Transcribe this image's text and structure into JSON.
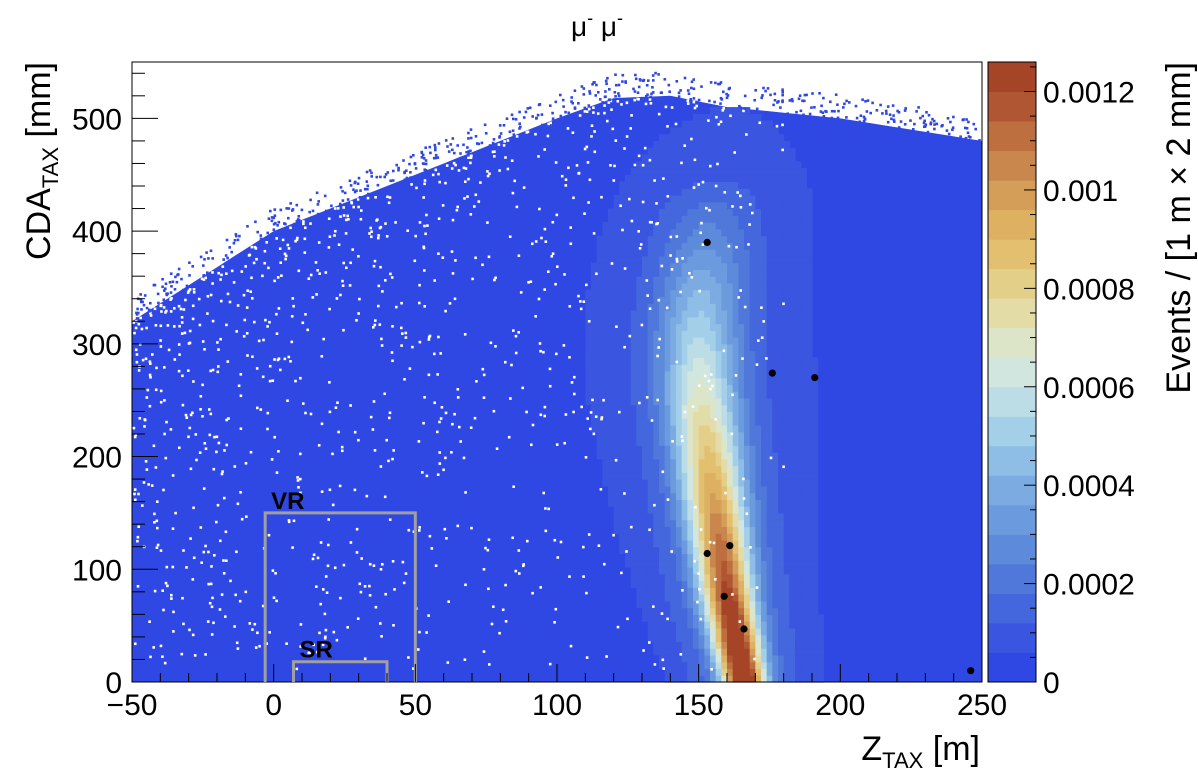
{
  "chart_data": {
    "type": "heatmap",
    "title_parts": [
      "μ",
      "-",
      " μ",
      "-"
    ],
    "xlabel": {
      "main": "Z",
      "sub": "TAX",
      "unit": " [m]"
    },
    "ylabel": {
      "main": "CDA",
      "sub": "TAX",
      "unit": " [mm]"
    },
    "zlabel": "Events / [1 m × 2 mm]",
    "xlim": [
      -50,
      250
    ],
    "ylim": [
      0,
      550
    ],
    "zlim": [
      0,
      0.00126
    ],
    "x_ticks": [
      -50,
      0,
      50,
      100,
      150,
      200,
      250
    ],
    "x_tick_labels": [
      "−50",
      "0",
      "50",
      "100",
      "150",
      "200",
      "250"
    ],
    "y_ticks": [
      0,
      100,
      200,
      300,
      400,
      500
    ],
    "y_tick_labels": [
      "0",
      "100",
      "200",
      "300",
      "400",
      "500"
    ],
    "z_ticks": [
      0,
      0.0002,
      0.0004,
      0.0006,
      0.0008,
      0.001,
      0.0012
    ],
    "z_tick_labels": [
      "0",
      "0.0002",
      "0.0004",
      "0.0006",
      "0.0008",
      "0.001",
      "0.0012"
    ],
    "palette": [
      "#2f47e3",
      "#3a55e0",
      "#4567dd",
      "#5078da",
      "#5d8adb",
      "#6c9ade",
      "#7cabe2",
      "#8ebde6",
      "#a4cfe8",
      "#bcdde6",
      "#d1e6df",
      "#dde5c8",
      "#e3dca7",
      "#e4cf88",
      "#e2c070",
      "#ddb062",
      "#d49d58",
      "#c9874d",
      "#bd6f3f",
      "#b05632",
      "#a54426"
    ],
    "density_model": {
      "background_value": 6e-06,
      "band_ridge_x": [
        [
          0,
          166
        ],
        [
          80,
          160
        ],
        [
          150,
          156
        ],
        [
          250,
          151
        ],
        [
          320,
          150
        ],
        [
          400,
          153
        ],
        [
          500,
          160
        ],
        [
          550,
          165
        ]
      ],
      "band_peak": 0.00126,
      "halo_peak": 0.00022,
      "empty_region_boundary": [
        [
          -50,
          320
        ],
        [
          0,
          400
        ],
        [
          50,
          450
        ],
        [
          100,
          500
        ],
        [
          120,
          518
        ],
        [
          140,
          520
        ],
        [
          160,
          510
        ],
        [
          200,
          500
        ],
        [
          250,
          480
        ]
      ]
    },
    "regions": [
      {
        "name": "VR",
        "x_range": [
          -3,
          50
        ],
        "y_range": [
          0,
          150
        ],
        "color": "#a0a0a0"
      },
      {
        "name": "SR",
        "x_range": [
          7,
          40
        ],
        "y_range": [
          0,
          18
        ],
        "color": "#a0a0a0"
      }
    ],
    "data_points": [
      {
        "x": 153,
        "y": 390
      },
      {
        "x": 176,
        "y": 274
      },
      {
        "x": 191,
        "y": 270
      },
      {
        "x": 161,
        "y": 121
      },
      {
        "x": 153,
        "y": 114
      },
      {
        "x": 159,
        "y": 76
      },
      {
        "x": 166,
        "y": 47
      },
      {
        "x": 246,
        "y": 10
      }
    ]
  }
}
